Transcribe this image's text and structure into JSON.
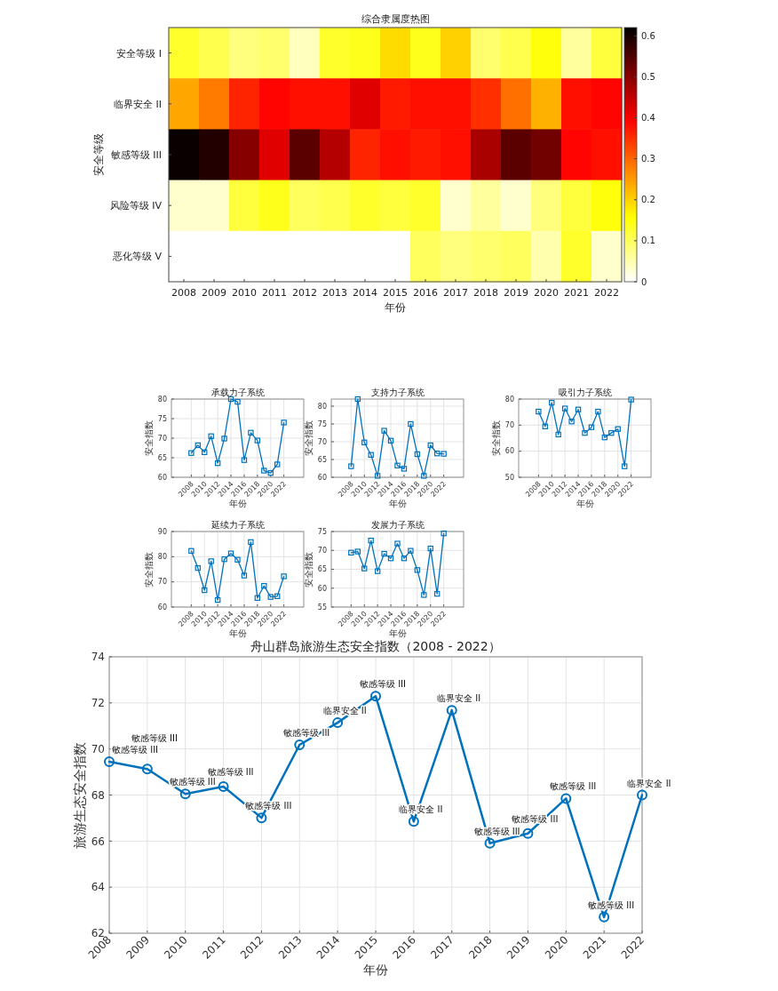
{
  "chart_data": [
    {
      "type": "heatmap",
      "title": "综合隶属度热图",
      "xlabel": "年份",
      "ylabel": "安全等级",
      "categories": [
        "2008",
        "2009",
        "2010",
        "2011",
        "2012",
        "2013",
        "2014",
        "2015",
        "2016",
        "2017",
        "2018",
        "2019",
        "2020",
        "2021",
        "2022"
      ],
      "y_categories": [
        "安全等级 I",
        "临界安全 II",
        "敏感等级 III",
        "风险等级 IV",
        "恶化等级 V"
      ],
      "cells": [
        [
          0.13,
          0.11,
          0.08,
          0.09,
          0.04,
          0.13,
          0.14,
          0.19,
          0.14,
          0.2,
          0.09,
          0.11,
          0.15,
          0.06,
          0.12
        ],
        [
          0.24,
          0.28,
          0.36,
          0.39,
          0.38,
          0.38,
          0.42,
          0.37,
          0.38,
          0.38,
          0.35,
          0.29,
          0.23,
          0.38,
          0.39
        ],
        [
          0.61,
          0.59,
          0.5,
          0.42,
          0.54,
          0.46,
          0.36,
          0.38,
          0.37,
          0.38,
          0.47,
          0.54,
          0.52,
          0.39,
          0.38
        ],
        [
          0.03,
          0.03,
          0.12,
          0.14,
          0.1,
          0.11,
          0.13,
          0.12,
          0.13,
          0.03,
          0.06,
          0.03,
          0.08,
          0.12,
          0.15
        ],
        [
          0,
          0,
          0,
          0,
          0,
          0,
          0,
          0,
          0.1,
          0.08,
          0.09,
          0.1,
          0.05,
          0.13,
          0.03
        ]
      ],
      "clim": [
        0,
        0.62
      ],
      "cticks": [
        0,
        0.1,
        0.2,
        0.3,
        0.4,
        0.5,
        0.6
      ]
    },
    {
      "type": "line",
      "title": "承载力子系统",
      "xlabel": "年份",
      "ylabel": "安全指数",
      "marker": "square",
      "grid": true,
      "x": [
        2008,
        2009,
        2010,
        2011,
        2012,
        2013,
        2014,
        2015,
        2016,
        2017,
        2018,
        2019,
        2020,
        2021,
        2022
      ],
      "xlim": [
        2005,
        2025
      ],
      "xticks": [
        2008,
        2010,
        2012,
        2014,
        2016,
        2018,
        2020,
        2022
      ],
      "ylim": [
        60,
        80
      ],
      "yticks": [
        60,
        65,
        70,
        75,
        80
      ],
      "series": [
        {
          "color": "#0072bd",
          "values": [
            66.2,
            68.2,
            66.4,
            70.5,
            63.6,
            69.9,
            80.0,
            79.3,
            64.4,
            71.4,
            69.4,
            61.7,
            61.1,
            63.3,
            74.0
          ]
        }
      ]
    },
    {
      "type": "line",
      "title": "支持力子系统",
      "xlabel": "年份",
      "ylabel": "安全指数",
      "marker": "square",
      "grid": true,
      "x": [
        2008,
        2009,
        2010,
        2011,
        2012,
        2013,
        2014,
        2015,
        2016,
        2017,
        2018,
        2019,
        2020,
        2021,
        2022
      ],
      "xlim": [
        2005,
        2025
      ],
      "xticks": [
        2008,
        2010,
        2012,
        2014,
        2016,
        2018,
        2020,
        2022
      ],
      "ylim": [
        60,
        82
      ],
      "yticks": [
        60,
        65,
        70,
        75,
        80
      ],
      "series": [
        {
          "color": "#0072bd",
          "values": [
            63.1,
            82.0,
            69.8,
            66.3,
            60.4,
            73.1,
            70.3,
            63.3,
            62.4,
            75.0,
            66.5,
            60.4,
            69.0,
            66.7,
            66.6
          ]
        }
      ]
    },
    {
      "type": "line",
      "title": "吸引力子系统",
      "xlabel": "年份",
      "ylabel": "安全指数",
      "marker": "square",
      "grid": true,
      "x": [
        2008,
        2009,
        2010,
        2011,
        2012,
        2013,
        2014,
        2015,
        2016,
        2017,
        2018,
        2019,
        2020,
        2021,
        2022
      ],
      "xlim": [
        2005,
        2025
      ],
      "xticks": [
        2008,
        2010,
        2012,
        2014,
        2016,
        2018,
        2020,
        2022
      ],
      "ylim": [
        50,
        80
      ],
      "yticks": [
        50,
        60,
        70,
        80
      ],
      "series": [
        {
          "color": "#0072bd",
          "values": [
            75.2,
            69.5,
            78.6,
            66.4,
            76.4,
            71.4,
            76.0,
            67.0,
            69.2,
            75.2,
            65.3,
            67.0,
            68.5,
            54.2,
            79.8
          ]
        }
      ]
    },
    {
      "type": "line",
      "title": "延续力子系统",
      "xlabel": "年份",
      "ylabel": "安全指数",
      "marker": "square",
      "grid": true,
      "x": [
        2008,
        2009,
        2010,
        2011,
        2012,
        2013,
        2014,
        2015,
        2016,
        2017,
        2018,
        2019,
        2020,
        2021,
        2022
      ],
      "xlim": [
        2005,
        2025
      ],
      "xticks": [
        2008,
        2010,
        2012,
        2014,
        2016,
        2018,
        2020,
        2022
      ],
      "ylim": [
        60,
        90
      ],
      "yticks": [
        60,
        70,
        80,
        90
      ],
      "series": [
        {
          "color": "#0072bd",
          "values": [
            82.3,
            75.5,
            66.7,
            78.2,
            62.8,
            79.0,
            81.3,
            78.8,
            72.5,
            85.8,
            63.6,
            68.4,
            64.0,
            64.3,
            72.2
          ]
        }
      ]
    },
    {
      "type": "line",
      "title": "发展力子系统",
      "xlabel": "年份",
      "ylabel": "安全指数",
      "marker": "square",
      "grid": true,
      "x": [
        2008,
        2009,
        2010,
        2011,
        2012,
        2013,
        2014,
        2015,
        2016,
        2017,
        2018,
        2019,
        2020,
        2021,
        2022
      ],
      "xlim": [
        2005,
        2025
      ],
      "xticks": [
        2008,
        2010,
        2012,
        2014,
        2016,
        2018,
        2020,
        2022
      ],
      "ylim": [
        55,
        75
      ],
      "yticks": [
        55,
        60,
        65,
        70,
        75
      ],
      "series": [
        {
          "color": "#0072bd",
          "values": [
            69.4,
            69.7,
            65.2,
            72.6,
            64.5,
            69.1,
            67.9,
            71.8,
            67.9,
            69.9,
            64.8,
            58.2,
            70.5,
            58.5,
            74.5
          ]
        }
      ]
    },
    {
      "type": "line",
      "title": "舟山群岛旅游生态安全指数（2008 - 2022）",
      "xlabel": "年份",
      "ylabel": "旅游生态安全指数",
      "marker": "circle",
      "grid": true,
      "x": [
        2008,
        2009,
        2010,
        2011,
        2012,
        2013,
        2014,
        2015,
        2016,
        2017,
        2018,
        2019,
        2020,
        2021,
        2022
      ],
      "xlim": [
        2008,
        2022
      ],
      "xticks": [
        2008,
        2009,
        2010,
        2011,
        2012,
        2013,
        2014,
        2015,
        2016,
        2017,
        2018,
        2019,
        2020,
        2021,
        2022
      ],
      "ylim": [
        62,
        74
      ],
      "yticks": [
        62,
        64,
        66,
        68,
        70,
        72,
        74
      ],
      "series": [
        {
          "color": "#0072bd",
          "values": [
            69.45,
            69.13,
            68.05,
            68.37,
            67.01,
            70.18,
            71.14,
            72.29,
            66.85,
            71.68,
            65.91,
            66.33,
            67.85,
            62.7,
            68.0
          ],
          "value_labels": [
            "敏感等级 III",
            "敏感等级 III",
            "敏感等级 III",
            "敏感等级 III",
            "敏感等级 III",
            "敏感等级 III",
            "临界安全 II",
            "敏感等级 III",
            "临界安全 II",
            "临界安全 II",
            "敏感等级 III",
            "敏感等级 III",
            "敏感等级 III",
            "敏感等级 III",
            "临界安全 II"
          ]
        }
      ]
    }
  ]
}
